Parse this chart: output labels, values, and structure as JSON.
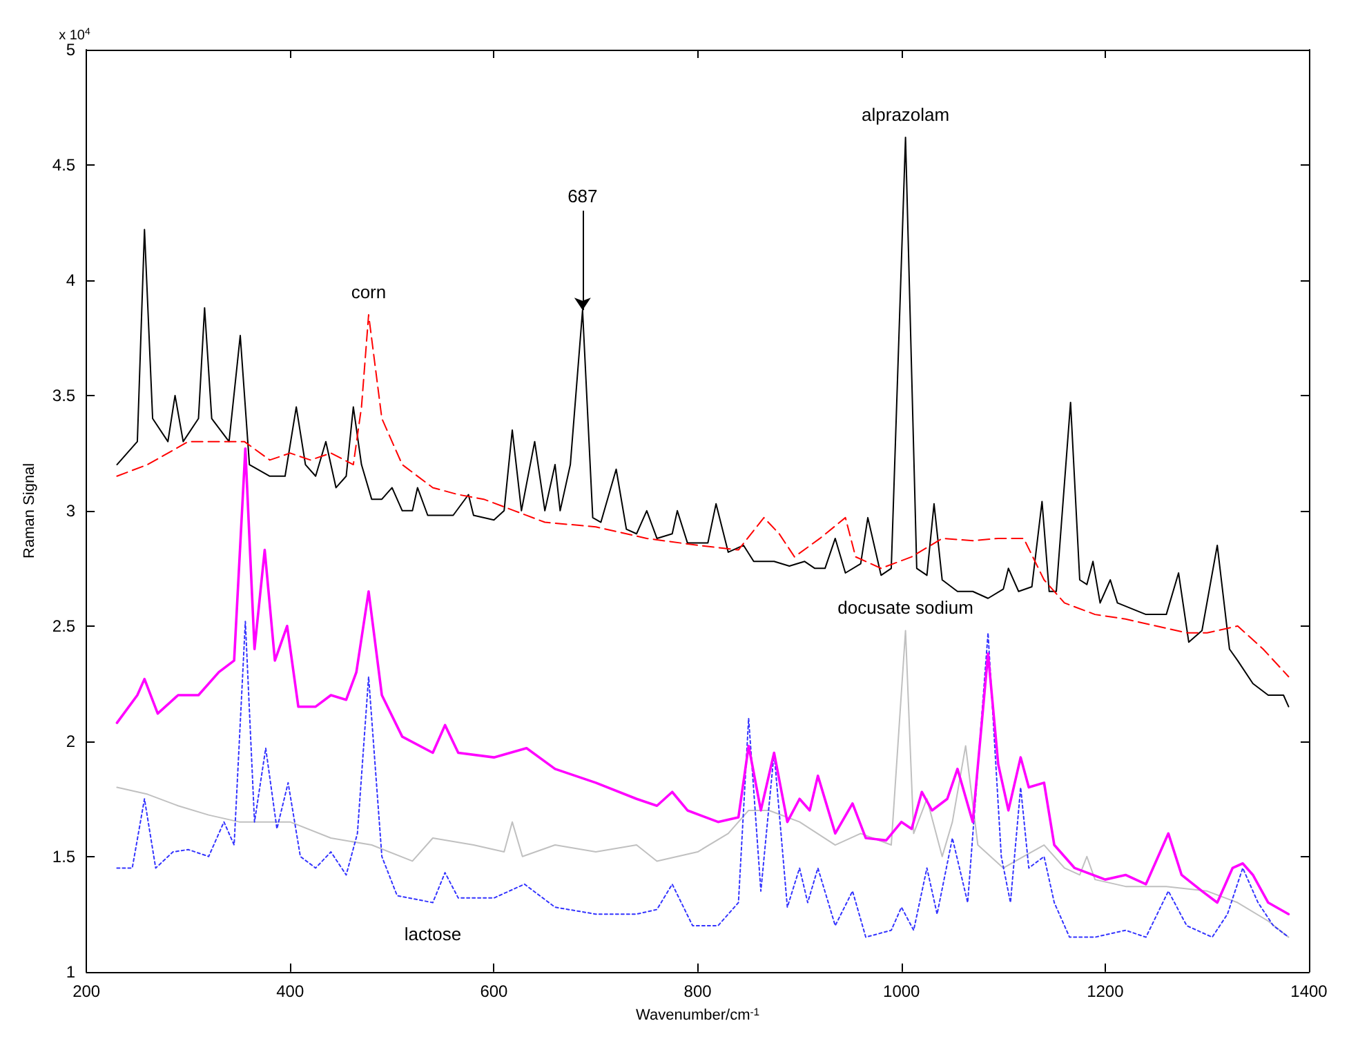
{
  "chart_data": {
    "type": "line",
    "xlabel": "Wavenumber/cm$^{-1}$",
    "ylabel": "Raman Signal",
    "xlim": [
      200,
      1400
    ],
    "xticks": [
      200,
      400,
      600,
      800,
      1000,
      1200,
      1400
    ],
    "ylim": [
      1,
      5
    ],
    "yticks": [
      1,
      1.5,
      2,
      2.5,
      3,
      3.5,
      4,
      4.5,
      5
    ],
    "grid": false,
    "marker": "none",
    "series": [
      {
        "color": "#000000",
        "line_style": "solid",
        "x": [
          230,
          250,
          257,
          265,
          280,
          287,
          295,
          310,
          316,
          323,
          340,
          351,
          360,
          380,
          395,
          406,
          415,
          425,
          435,
          445,
          455,
          462,
          470,
          480,
          490,
          500,
          510,
          520,
          525,
          535,
          560,
          575,
          580,
          600,
          610,
          618,
          627,
          640,
          650,
          660,
          665,
          675,
          687,
          697,
          705,
          720,
          730,
          740,
          750,
          760,
          775,
          780,
          790,
          810,
          818,
          830,
          845,
          855,
          875,
          890,
          905,
          915,
          925,
          935,
          945,
          960,
          967,
          980,
          990,
          1004,
          1015,
          1025,
          1032,
          1040,
          1055,
          1070,
          1085,
          1100,
          1105,
          1115,
          1128,
          1138,
          1145,
          1152,
          1166,
          1175,
          1182,
          1188,
          1195,
          1205,
          1212,
          1240,
          1260,
          1272,
          1282,
          1295,
          1310,
          1322,
          1330,
          1345,
          1360,
          1375,
          1380
        ],
        "values": [
          3.2,
          3.3,
          4.22,
          3.4,
          3.3,
          3.5,
          3.3,
          3.4,
          3.88,
          3.4,
          3.3,
          3.76,
          3.2,
          3.15,
          3.15,
          3.45,
          3.2,
          3.15,
          3.3,
          3.1,
          3.15,
          3.45,
          3.2,
          3.05,
          3.05,
          3.1,
          3.0,
          3.0,
          3.1,
          2.98,
          2.98,
          3.07,
          2.98,
          2.96,
          3.0,
          3.35,
          3.0,
          3.3,
          3.0,
          3.2,
          3.0,
          3.2,
          3.87,
          2.97,
          2.95,
          3.18,
          2.92,
          2.9,
          3.0,
          2.88,
          2.9,
          3.0,
          2.86,
          2.86,
          3.03,
          2.82,
          2.85,
          2.78,
          2.78,
          2.76,
          2.78,
          2.75,
          2.75,
          2.88,
          2.73,
          2.77,
          2.97,
          2.72,
          2.75,
          4.62,
          2.75,
          2.72,
          3.03,
          2.7,
          2.65,
          2.65,
          2.62,
          2.66,
          2.75,
          2.65,
          2.67,
          3.04,
          2.65,
          2.65,
          3.47,
          2.7,
          2.68,
          2.78,
          2.6,
          2.7,
          2.6,
          2.55,
          2.55,
          2.73,
          2.43,
          2.48,
          2.85,
          2.4,
          2.35,
          2.25,
          2.2,
          2.2,
          2.15
        ]
      },
      {
        "color": "#ff0000",
        "line_style": "dashed",
        "x": [
          230,
          260,
          300,
          340,
          355,
          380,
          400,
          420,
          440,
          462,
          470,
          477,
          490,
          510,
          540,
          565,
          590,
          620,
          650,
          700,
          750,
          800,
          840,
          865,
          880,
          895,
          920,
          945,
          955,
          980,
          1010,
          1040,
          1070,
          1095,
          1120,
          1140,
          1160,
          1190,
          1220,
          1250,
          1280,
          1300,
          1330,
          1355,
          1380
        ],
        "values": [
          3.15,
          3.2,
          3.3,
          3.3,
          3.3,
          3.22,
          3.25,
          3.22,
          3.25,
          3.2,
          3.45,
          3.85,
          3.4,
          3.2,
          3.1,
          3.07,
          3.05,
          3.0,
          2.95,
          2.93,
          2.88,
          2.85,
          2.83,
          2.97,
          2.9,
          2.8,
          2.88,
          2.97,
          2.8,
          2.75,
          2.8,
          2.88,
          2.87,
          2.88,
          2.88,
          2.7,
          2.6,
          2.55,
          2.53,
          2.5,
          2.47,
          2.47,
          2.5,
          2.4,
          2.28
        ]
      },
      {
        "color": "#c0c0c0",
        "line_style": "solid",
        "x": [
          230,
          260,
          290,
          320,
          350,
          400,
          440,
          480,
          520,
          540,
          580,
          610,
          618,
          628,
          660,
          700,
          740,
          760,
          800,
          830,
          850,
          870,
          900,
          935,
          960,
          990,
          1004,
          1012,
          1025,
          1040,
          1050,
          1063,
          1075,
          1100,
          1120,
          1140,
          1160,
          1175,
          1182,
          1190,
          1220,
          1260,
          1300,
          1330,
          1360,
          1380
        ],
        "values": [
          1.8,
          1.77,
          1.72,
          1.68,
          1.65,
          1.65,
          1.58,
          1.55,
          1.48,
          1.58,
          1.55,
          1.52,
          1.65,
          1.5,
          1.55,
          1.52,
          1.55,
          1.48,
          1.52,
          1.6,
          1.7,
          1.7,
          1.65,
          1.55,
          1.6,
          1.55,
          2.48,
          1.6,
          1.75,
          1.5,
          1.65,
          1.98,
          1.55,
          1.45,
          1.5,
          1.55,
          1.45,
          1.42,
          1.5,
          1.4,
          1.37,
          1.37,
          1.35,
          1.3,
          1.22,
          1.15
        ]
      },
      {
        "color": "#3333ff",
        "line_style": "dotted",
        "x": [
          230,
          245,
          257,
          268,
          285,
          300,
          320,
          335,
          345,
          356,
          365,
          376,
          387,
          398,
          410,
          425,
          440,
          455,
          466,
          477,
          490,
          505,
          540,
          552,
          565,
          600,
          630,
          660,
          700,
          740,
          760,
          775,
          795,
          820,
          840,
          850,
          862,
          875,
          888,
          900,
          908,
          918,
          935,
          952,
          965,
          990,
          1000,
          1012,
          1025,
          1035,
          1050,
          1065,
          1085,
          1098,
          1107,
          1117,
          1125,
          1140,
          1150,
          1165,
          1190,
          1220,
          1240,
          1262,
          1280,
          1305,
          1320,
          1335,
          1350,
          1365,
          1380
        ],
        "values": [
          1.45,
          1.45,
          1.75,
          1.45,
          1.52,
          1.53,
          1.5,
          1.65,
          1.55,
          2.52,
          1.65,
          1.97,
          1.62,
          1.82,
          1.5,
          1.45,
          1.52,
          1.42,
          1.6,
          2.28,
          1.5,
          1.33,
          1.3,
          1.43,
          1.32,
          1.32,
          1.38,
          1.28,
          1.25,
          1.25,
          1.27,
          1.38,
          1.2,
          1.2,
          1.3,
          2.1,
          1.35,
          1.95,
          1.28,
          1.45,
          1.3,
          1.45,
          1.2,
          1.35,
          1.15,
          1.18,
          1.28,
          1.18,
          1.45,
          1.25,
          1.58,
          1.3,
          2.47,
          1.5,
          1.3,
          1.8,
          1.45,
          1.5,
          1.3,
          1.15,
          1.15,
          1.18,
          1.15,
          1.35,
          1.2,
          1.15,
          1.25,
          1.45,
          1.3,
          1.2,
          1.15
        ]
      },
      {
        "color": "#ff00ff",
        "line_style": "solid",
        "x": [
          230,
          250,
          257,
          270,
          290,
          310,
          330,
          345,
          356,
          365,
          375,
          385,
          397,
          408,
          425,
          440,
          455,
          465,
          477,
          490,
          510,
          540,
          552,
          565,
          600,
          632,
          660,
          700,
          740,
          760,
          775,
          790,
          820,
          840,
          850,
          862,
          875,
          888,
          900,
          910,
          918,
          935,
          952,
          965,
          985,
          1000,
          1010,
          1020,
          1030,
          1045,
          1055,
          1070,
          1085,
          1095,
          1105,
          1117,
          1125,
          1140,
          1150,
          1170,
          1200,
          1220,
          1240,
          1262,
          1275,
          1295,
          1310,
          1325,
          1335,
          1345,
          1360,
          1380
        ],
        "values": [
          2.08,
          2.2,
          2.27,
          2.12,
          2.2,
          2.2,
          2.3,
          2.35,
          3.27,
          2.4,
          2.83,
          2.35,
          2.5,
          2.15,
          2.15,
          2.2,
          2.18,
          2.3,
          2.65,
          2.2,
          2.02,
          1.95,
          2.07,
          1.95,
          1.93,
          1.97,
          1.88,
          1.82,
          1.75,
          1.72,
          1.78,
          1.7,
          1.65,
          1.67,
          1.98,
          1.7,
          1.95,
          1.65,
          1.75,
          1.7,
          1.85,
          1.6,
          1.73,
          1.58,
          1.57,
          1.65,
          1.62,
          1.78,
          1.7,
          1.75,
          1.88,
          1.65,
          2.38,
          1.9,
          1.7,
          1.93,
          1.8,
          1.82,
          1.55,
          1.45,
          1.4,
          1.42,
          1.38,
          1.6,
          1.42,
          1.35,
          1.3,
          1.45,
          1.47,
          1.42,
          1.3,
          1.25
        ]
      }
    ],
    "annotations": [
      "x 10$^{4}$",
      {
        "text": "corn",
        "x": 477,
        "y": 3.85
      },
      {
        "text": "687",
        "x": 687,
        "y": 3.87
      },
      {
        "text": "alprazolam",
        "x": 1004,
        "y": 4.62
      },
      {
        "text": "docusate sodium",
        "x": 1004,
        "y": 2.48
      },
      {
        "text": "lactose",
        "x": 540,
        "y": 1.3
      }
    ]
  }
}
